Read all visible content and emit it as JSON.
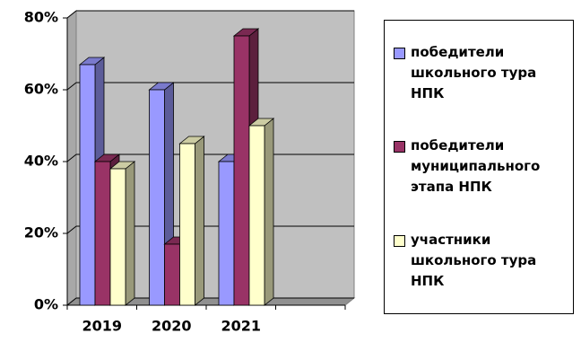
{
  "chart_data": {
    "type": "bar3d",
    "categories": [
      "2019",
      "2020",
      "2021",
      null
    ],
    "series": [
      {
        "name": "победители школьного тура НПК",
        "color": "#9999ff",
        "values": [
          67,
          60,
          40,
          null
        ]
      },
      {
        "name": "победители муниципального этапа НПК",
        "color": "#993366",
        "values": [
          40,
          17,
          75,
          null
        ]
      },
      {
        "name": "участники школьного тура НПК",
        "color": "#ffffcc",
        "values": [
          38,
          45,
          50,
          null
        ]
      }
    ],
    "ylim": [
      0,
      80
    ],
    "yticks": [
      {
        "value": 0,
        "label": "0%"
      },
      {
        "value": 20,
        "label": "20%"
      },
      {
        "value": 40,
        "label": "40%"
      },
      {
        "value": 60,
        "label": "60%"
      },
      {
        "value": 80,
        "label": "80%"
      }
    ],
    "grid": true,
    "legend": "right"
  }
}
